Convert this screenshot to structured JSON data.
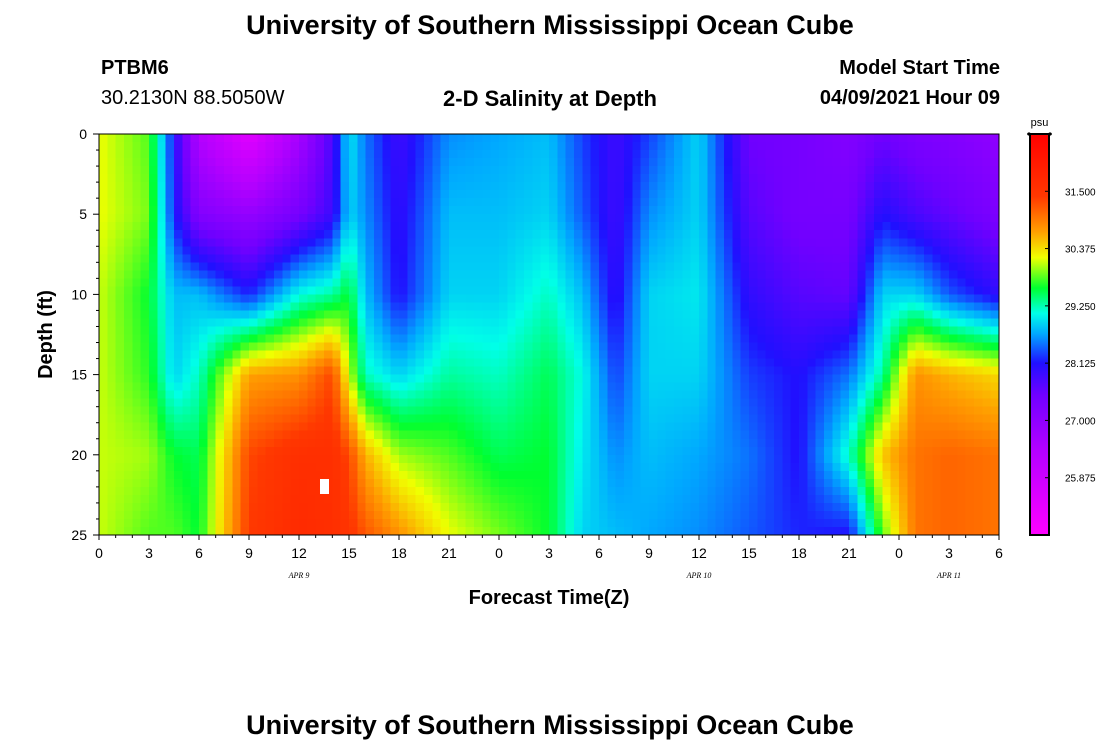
{
  "page": {
    "title_top": "University of Southern Mississippi Ocean Cube",
    "title_bottom": "University of Southern Mississippi Ocean Cube"
  },
  "header": {
    "station_id": "PTBM6",
    "coordinates": "30.2130N  88.5050W",
    "plot_title": "2-D Salinity at Depth",
    "start_label": "Model Start Time",
    "start_value": "04/09/2021 Hour 09"
  },
  "chart_data": {
    "type": "heatmap",
    "title": "2-D Salinity at Depth",
    "xlabel": "Forecast Time(Z)",
    "ylabel": "Depth (ft)",
    "x_range_hours": [
      0,
      54
    ],
    "x_ticks": [
      {
        "h": 0,
        "label": "0"
      },
      {
        "h": 3,
        "label": "3"
      },
      {
        "h": 6,
        "label": "6"
      },
      {
        "h": 9,
        "label": "9"
      },
      {
        "h": 12,
        "label": "12"
      },
      {
        "h": 15,
        "label": "15"
      },
      {
        "h": 18,
        "label": "18"
      },
      {
        "h": 21,
        "label": "21"
      },
      {
        "h": 24,
        "label": "0"
      },
      {
        "h": 27,
        "label": "3"
      },
      {
        "h": 30,
        "label": "6"
      },
      {
        "h": 33,
        "label": "9"
      },
      {
        "h": 36,
        "label": "12"
      },
      {
        "h": 39,
        "label": "15"
      },
      {
        "h": 42,
        "label": "18"
      },
      {
        "h": 45,
        "label": "21"
      },
      {
        "h": 48,
        "label": "0"
      },
      {
        "h": 51,
        "label": "3"
      },
      {
        "h": 54,
        "label": "6"
      }
    ],
    "date_labels": [
      {
        "h": 12,
        "label": "APR  9"
      },
      {
        "h": 36,
        "label": "APR  10"
      },
      {
        "h": 51,
        "label": "APR  11"
      }
    ],
    "y_range_ft": [
      0,
      25
    ],
    "y_ticks": [
      0,
      5,
      10,
      15,
      20,
      25
    ],
    "colorbar": {
      "unit": "psu",
      "range": [
        24.75,
        32.625
      ],
      "tick_labels": [
        "31.500",
        "30.375",
        "29.250",
        "28.125",
        "27.000",
        "25.875"
      ],
      "tick_values": [
        31.5,
        30.375,
        29.25,
        28.125,
        27.0,
        25.875
      ]
    },
    "salinity_columns": [
      {
        "h": 0,
        "values": [
          30.2,
          30.2,
          30.1,
          30.1,
          30.1,
          30.1
        ]
      },
      {
        "h": 3,
        "values": [
          29.8,
          29.9,
          29.6,
          29.7,
          30.0,
          29.8
        ]
      },
      {
        "h": 4.5,
        "values": [
          28.1,
          28.2,
          28.8,
          28.9,
          29.6,
          29.8
        ]
      },
      {
        "h": 6,
        "values": [
          26.4,
          27.2,
          28.8,
          29.2,
          29.5,
          29.6
        ]
      },
      {
        "h": 9,
        "values": [
          25.4,
          26.9,
          28.2,
          30.7,
          31.3,
          31.4
        ]
      },
      {
        "h": 12,
        "values": [
          26.6,
          27.4,
          29.1,
          30.8,
          31.6,
          31.7
        ]
      },
      {
        "h": 14,
        "values": [
          27.8,
          27.9,
          29.3,
          31.3,
          31.6,
          31.6
        ]
      },
      {
        "h": 15,
        "values": [
          29.0,
          28.9,
          29.6,
          30.1,
          31.3,
          31.5
        ]
      },
      {
        "h": 16,
        "values": [
          28.5,
          28.6,
          28.8,
          29.2,
          30.6,
          31.2
        ]
      },
      {
        "h": 18,
        "values": [
          27.9,
          28.0,
          28.1,
          28.9,
          30.0,
          30.8
        ]
      },
      {
        "h": 21,
        "values": [
          28.6,
          28.8,
          28.9,
          29.3,
          29.8,
          30.2
        ]
      },
      {
        "h": 24,
        "values": [
          28.7,
          28.8,
          28.9,
          29.2,
          29.5,
          29.9
        ]
      },
      {
        "h": 27,
        "values": [
          28.8,
          28.9,
          29.2,
          29.5,
          29.6,
          29.6
        ]
      },
      {
        "h": 29,
        "values": [
          28.3,
          28.4,
          28.8,
          29.1,
          29.0,
          28.9
        ]
      },
      {
        "h": 31,
        "values": [
          27.9,
          27.9,
          28.0,
          28.3,
          28.6,
          28.8
        ]
      },
      {
        "h": 33,
        "values": [
          28.3,
          28.6,
          28.9,
          28.9,
          28.8,
          28.7
        ]
      },
      {
        "h": 36,
        "values": [
          28.9,
          28.9,
          29.0,
          28.9,
          28.7,
          28.6
        ]
      },
      {
        "h": 39,
        "values": [
          27.5,
          27.7,
          28.0,
          28.3,
          28.5,
          28.4
        ]
      },
      {
        "h": 42,
        "values": [
          27.4,
          27.4,
          27.7,
          28.1,
          28.1,
          28.2
        ]
      },
      {
        "h": 45,
        "values": [
          27.2,
          27.4,
          27.6,
          28.5,
          29.2,
          28.1
        ]
      },
      {
        "h": 47,
        "values": [
          27.5,
          28.1,
          28.9,
          29.3,
          30.5,
          29.8
        ]
      },
      {
        "h": 49,
        "values": [
          27.3,
          27.8,
          28.9,
          30.8,
          31.0,
          31.0
        ]
      },
      {
        "h": 51,
        "values": [
          27.2,
          27.6,
          28.4,
          30.6,
          31.1,
          31.1
        ]
      },
      {
        "h": 54,
        "values": [
          27.0,
          27.3,
          28.0,
          30.4,
          31.0,
          31.0
        ]
      }
    ],
    "salinity_depths_ft": [
      0,
      5,
      10,
      15,
      20,
      25
    ],
    "palette": [
      {
        "v": 24.75,
        "color": "#ff00ff"
      },
      {
        "v": 26.4,
        "color": "#b400ff"
      },
      {
        "v": 27.5,
        "color": "#7000ff"
      },
      {
        "v": 28.125,
        "color": "#2010ff"
      },
      {
        "v": 28.7,
        "color": "#00a8ff"
      },
      {
        "v": 29.1,
        "color": "#00ffe8"
      },
      {
        "v": 29.6,
        "color": "#00ff30"
      },
      {
        "v": 30.2,
        "color": "#f0ff00"
      },
      {
        "v": 30.7,
        "color": "#ffa000"
      },
      {
        "v": 31.4,
        "color": "#ff3800"
      },
      {
        "v": 32.625,
        "color": "#ff0000"
      }
    ]
  }
}
